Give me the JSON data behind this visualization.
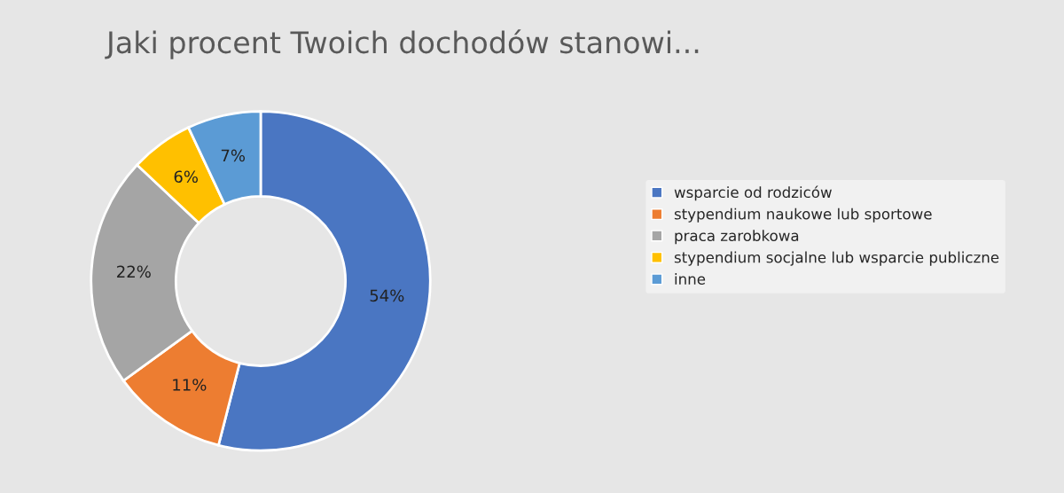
{
  "chart_data": {
    "type": "donut",
    "title": "Jaki procent Twoich dochodów stanowi...",
    "categories": [
      "wsparcie od rodziców",
      "stypendium naukowe lub sportowe",
      "praca zarobkowa",
      "stypendium socjalne lub wsparcie publiczne",
      "inne"
    ],
    "values": [
      54,
      11,
      22,
      6,
      7
    ],
    "value_labels": [
      "54%",
      "11%",
      "22%",
      "6%",
      "7%"
    ],
    "colors": [
      "#4a76c2",
      "#ed7d31",
      "#a5a5a5",
      "#ffc000",
      "#5b9bd5"
    ],
    "legend": "right"
  }
}
